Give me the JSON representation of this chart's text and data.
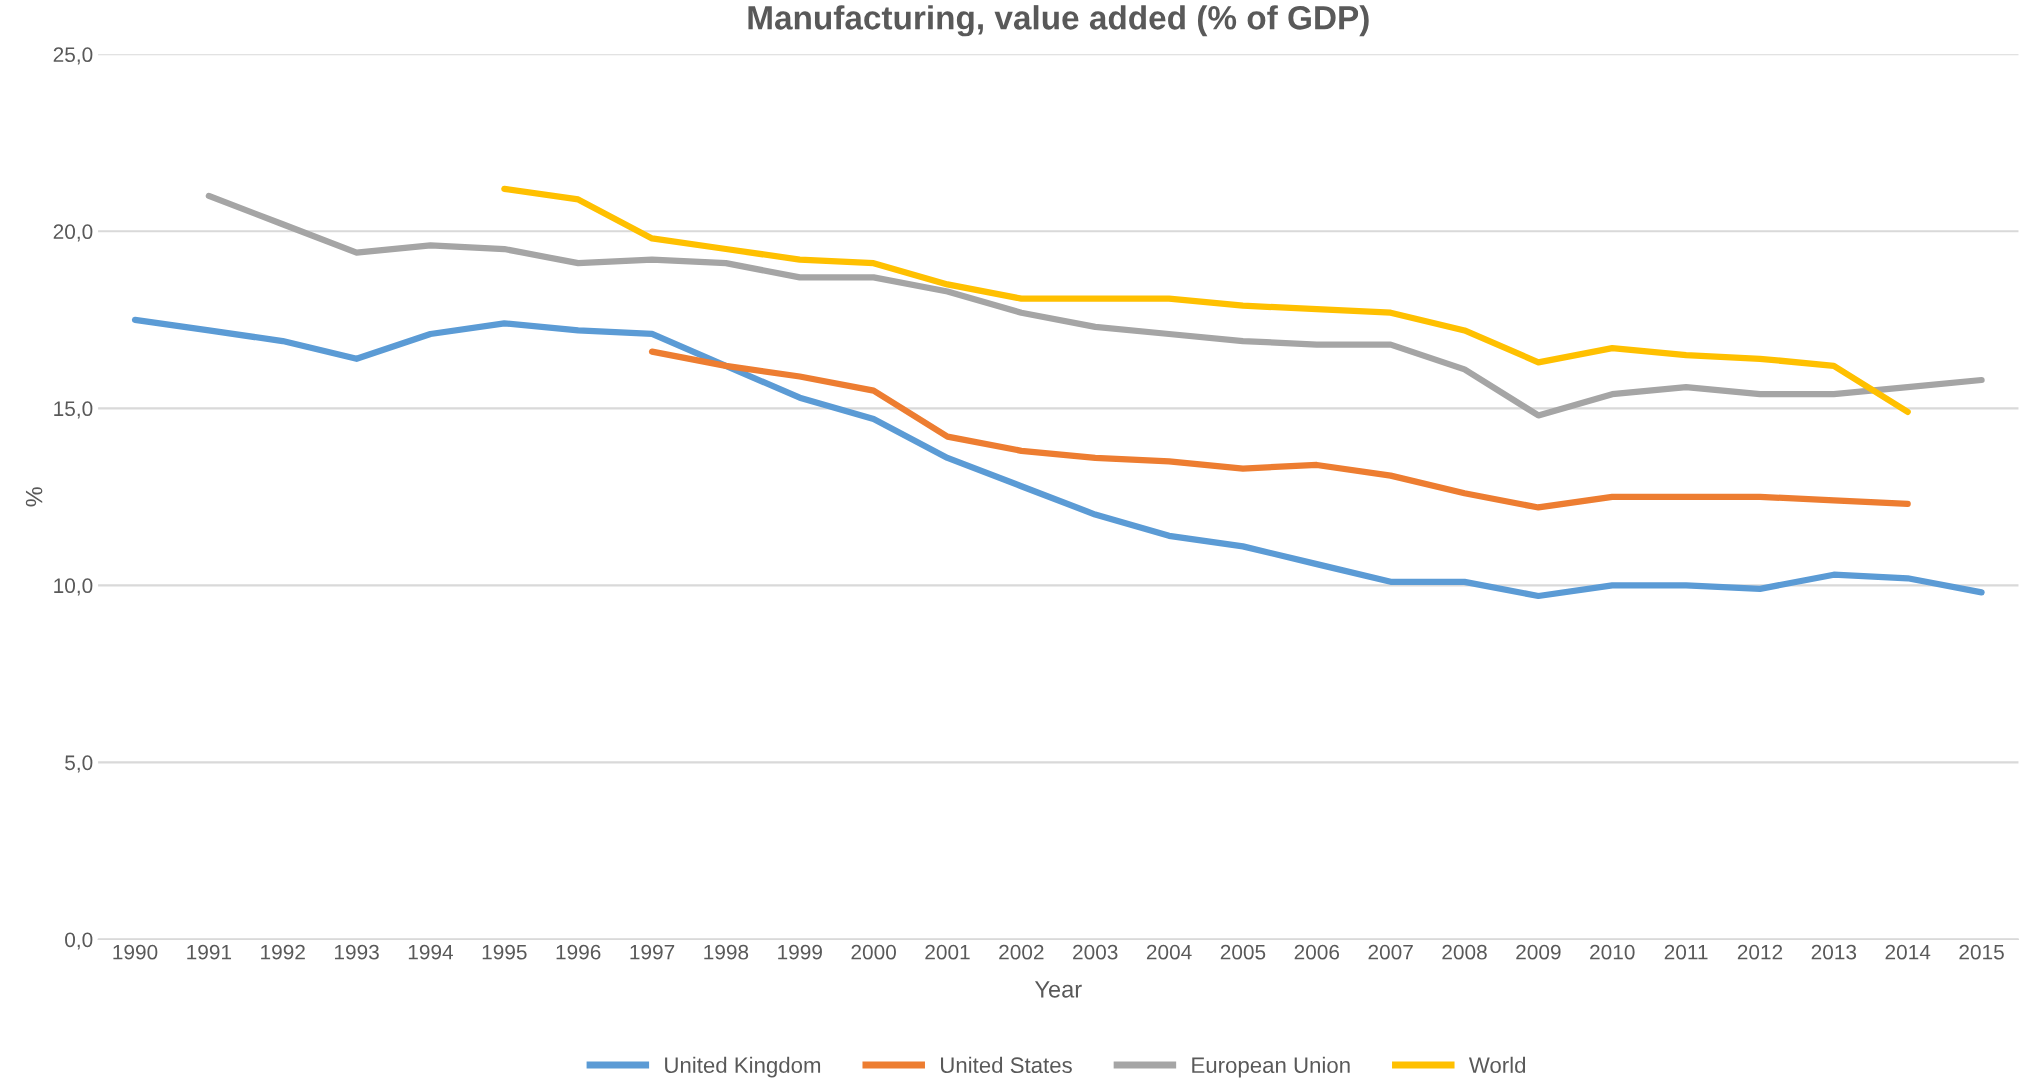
{
  "chart_data": {
    "type": "line",
    "title": "Manufacturing, value added (% of GDP)",
    "xlabel": "Year",
    "ylabel": "%",
    "categories": [
      "1990",
      "1991",
      "1992",
      "1993",
      "1994",
      "1995",
      "1996",
      "1997",
      "1998",
      "1999",
      "2000",
      "2001",
      "2002",
      "2003",
      "2004",
      "2005",
      "2006",
      "2007",
      "2008",
      "2009",
      "2010",
      "2011",
      "2012",
      "2013",
      "2014",
      "2015"
    ],
    "series": [
      {
        "name": "United Kingdom",
        "color": "#5b9bd5",
        "values": [
          17.5,
          17.2,
          16.9,
          16.4,
          17.1,
          17.4,
          17.2,
          17.1,
          16.2,
          15.3,
          14.7,
          13.6,
          12.8,
          12.0,
          11.4,
          11.1,
          10.6,
          10.1,
          10.1,
          9.7,
          10.0,
          10.0,
          9.9,
          10.3,
          10.2,
          9.8
        ]
      },
      {
        "name": "United States",
        "color": "#ed7d31",
        "values": [
          null,
          null,
          null,
          null,
          null,
          null,
          null,
          16.6,
          16.2,
          15.9,
          15.5,
          14.2,
          13.8,
          13.6,
          13.5,
          13.3,
          13.4,
          13.1,
          12.6,
          12.2,
          12.5,
          12.5,
          12.5,
          12.4,
          12.3,
          null
        ]
      },
      {
        "name": "European Union",
        "color": "#a5a5a5",
        "values": [
          null,
          21.0,
          20.2,
          19.4,
          19.6,
          19.5,
          19.1,
          19.2,
          19.1,
          18.7,
          18.7,
          18.3,
          17.7,
          17.3,
          17.1,
          16.9,
          16.8,
          16.8,
          16.1,
          14.8,
          15.4,
          15.6,
          15.4,
          15.4,
          15.6,
          15.8
        ]
      },
      {
        "name": "World",
        "color": "#ffc000",
        "values": [
          null,
          null,
          null,
          null,
          null,
          21.2,
          20.9,
          19.8,
          19.5,
          19.2,
          19.1,
          18.5,
          18.1,
          18.1,
          18.1,
          17.9,
          17.8,
          17.7,
          17.2,
          16.3,
          16.7,
          16.5,
          16.4,
          16.2,
          14.9,
          null
        ]
      }
    ],
    "ylim": [
      0,
      25
    ],
    "yticks": [
      {
        "value": 0,
        "label": "0,0"
      },
      {
        "value": 5,
        "label": "5,0"
      },
      {
        "value": 10,
        "label": "10,0"
      },
      {
        "value": 15,
        "label": "15,0"
      },
      {
        "value": 20,
        "label": "20,0"
      },
      {
        "value": 25,
        "label": "25,0"
      }
    ],
    "grid": "y",
    "legend": "bottom",
    "marker": "none",
    "line_style": "solid"
  }
}
